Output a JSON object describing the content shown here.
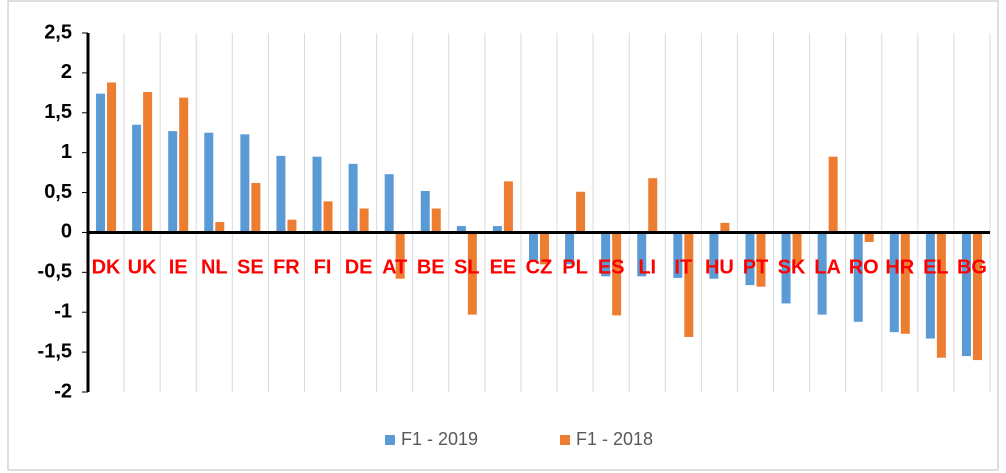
{
  "chart_data": {
    "type": "bar",
    "categories": [
      "DK",
      "UK",
      "IE",
      "NL",
      "SE",
      "FR",
      "FI",
      "DE",
      "AT",
      "BE",
      "SL",
      "EE",
      "CZ",
      "PL",
      "ES",
      "LI",
      "IT",
      "HU",
      "PT",
      "SK",
      "LA",
      "RO",
      "HR",
      "EL",
      "BG"
    ],
    "series": [
      {
        "name": "F1 - 2019",
        "color": "#5b9bd5",
        "values": [
          1.74,
          1.35,
          1.27,
          1.25,
          1.23,
          0.96,
          0.95,
          0.86,
          0.73,
          0.52,
          0.08,
          0.08,
          -0.35,
          -0.4,
          -0.55,
          -0.55,
          -0.57,
          -0.58,
          -0.66,
          -0.89,
          -1.03,
          -1.12,
          -1.25,
          -1.33,
          -1.55
        ]
      },
      {
        "name": "F1 - 2018",
        "color": "#ed7d31",
        "values": [
          1.88,
          1.76,
          1.69,
          0.13,
          0.62,
          0.16,
          0.39,
          0.3,
          -0.58,
          0.3,
          -1.03,
          0.64,
          -0.4,
          0.51,
          -1.04,
          0.68,
          -1.31,
          0.12,
          -0.68,
          -0.4,
          0.95,
          -0.12,
          -1.27,
          -1.57,
          -1.6
        ]
      }
    ],
    "category_label_color": "#ff0000",
    "ylim": [
      -2,
      2.5
    ],
    "yticks": [
      -2,
      {
        "value": -1.5,
        "label": "-1,5"
      },
      -1,
      {
        "value": -0.5,
        "label": "-0,5"
      },
      0,
      {
        "value": 0.5,
        "label": "0,5"
      },
      1,
      {
        "value": 1.5,
        "label": "1,5"
      },
      2,
      {
        "value": 2.5,
        "label": "2,5"
      }
    ],
    "grid": true,
    "legend": "bottom"
  }
}
